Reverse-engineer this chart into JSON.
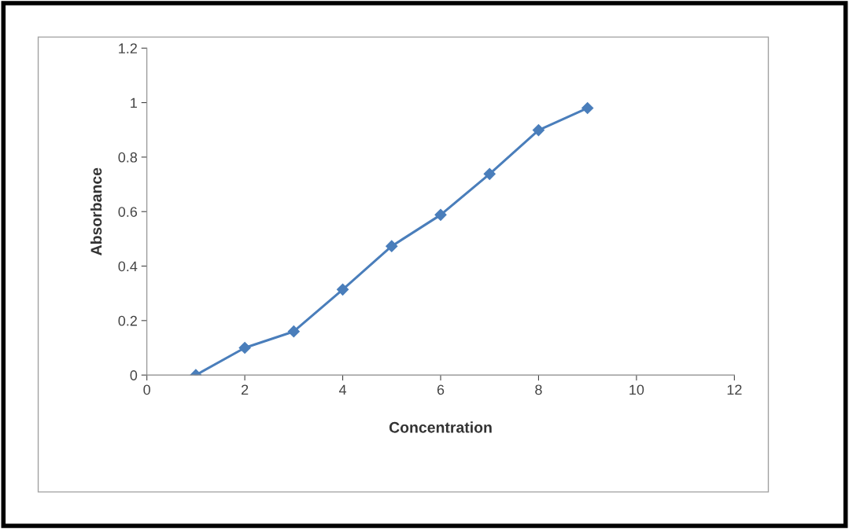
{
  "chart_data": {
    "type": "line",
    "xlabel": "Concentration",
    "ylabel": "Absorbance",
    "x": [
      1,
      2,
      3,
      4,
      5,
      6,
      7,
      8,
      9
    ],
    "series": [
      {
        "color": "#4a7ebb",
        "values": [
          0,
          0.1,
          0.16,
          0.314,
          0.473,
          0.588,
          0.738,
          0.899,
          0.98
        ]
      }
    ],
    "xlim": [
      0,
      12
    ],
    "xticks": [
      0,
      2,
      4,
      6,
      8,
      10,
      12
    ],
    "ylim": [
      0,
      1.2
    ],
    "yticks": [
      0,
      0.2,
      0.4,
      0.6,
      0.8,
      1,
      1.2
    ],
    "grid": false,
    "marker": "diamond",
    "line_style": "solid"
  }
}
